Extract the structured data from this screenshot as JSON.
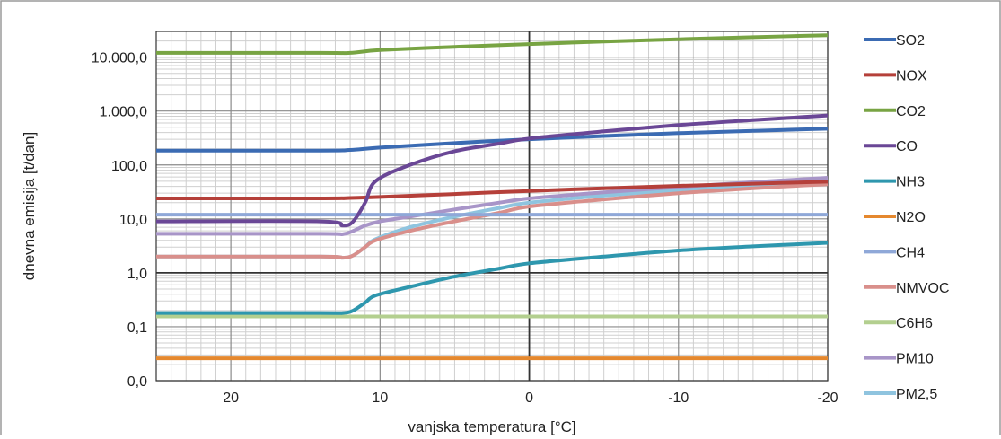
{
  "chart_data": {
    "type": "line",
    "title": "",
    "xlabel": "vanjska temperatura [°C]",
    "ylabel": "dnevna emisija [t/dan]",
    "xlim": [
      25,
      -20
    ],
    "ylim": [
      0.01,
      30000
    ],
    "yscale": "log",
    "x_ticks": [
      20,
      10,
      0,
      -10,
      -20
    ],
    "x_tick_labels": [
      "20",
      "10",
      "0",
      "-10",
      "-20"
    ],
    "y_ticks": [
      0.01,
      0.1,
      1,
      10,
      100,
      1000,
      10000
    ],
    "y_tick_labels": [
      "0,0",
      "0,1",
      "1,0",
      "10,0",
      "100,0",
      "1.000,0",
      "10.000,0"
    ],
    "grid": true,
    "legend_position": "right",
    "series": [
      {
        "name": "SO2",
        "color": "#3B6BB3",
        "points": [
          [
            25,
            185
          ],
          [
            14,
            185
          ],
          [
            12,
            190
          ],
          [
            10,
            210
          ],
          [
            5,
            255
          ],
          [
            0,
            300
          ],
          [
            -5,
            345
          ],
          [
            -10,
            390
          ],
          [
            -15,
            430
          ],
          [
            -20,
            470
          ]
        ]
      },
      {
        "name": "NOX",
        "color": "#B5403A",
        "points": [
          [
            25,
            24
          ],
          [
            14,
            24
          ],
          [
            12,
            24.5
          ],
          [
            10,
            25.5
          ],
          [
            5,
            29
          ],
          [
            0,
            33
          ],
          [
            -5,
            37
          ],
          [
            -10,
            41
          ],
          [
            -15,
            45
          ],
          [
            -20,
            49
          ]
        ]
      },
      {
        "name": "CO2",
        "color": "#78A443",
        "points": [
          [
            25,
            12000
          ],
          [
            14,
            12000
          ],
          [
            12,
            12000
          ],
          [
            10,
            13500
          ],
          [
            5,
            15500
          ],
          [
            0,
            17500
          ],
          [
            -5,
            19500
          ],
          [
            -10,
            21500
          ],
          [
            -15,
            23500
          ],
          [
            -20,
            25500
          ]
        ]
      },
      {
        "name": "CO",
        "color": "#6A4796",
        "points": [
          [
            25,
            9
          ],
          [
            14,
            9
          ],
          [
            12.5,
            7.5
          ],
          [
            11.8,
            9
          ],
          [
            11,
            20
          ],
          [
            10.3,
            50
          ],
          [
            8,
            100
          ],
          [
            5,
            180
          ],
          [
            2,
            250
          ],
          [
            0,
            310
          ],
          [
            -5,
            420
          ],
          [
            -10,
            550
          ],
          [
            -15,
            680
          ],
          [
            -20,
            830
          ]
        ]
      },
      {
        "name": "NH3",
        "color": "#2E97AE",
        "points": [
          [
            25,
            0.18
          ],
          [
            14,
            0.18
          ],
          [
            12.5,
            0.18
          ],
          [
            11.8,
            0.2
          ],
          [
            11,
            0.28
          ],
          [
            10.3,
            0.38
          ],
          [
            8,
            0.55
          ],
          [
            5,
            0.85
          ],
          [
            2,
            1.2
          ],
          [
            0,
            1.5
          ],
          [
            -5,
            2
          ],
          [
            -10,
            2.6
          ],
          [
            -15,
            3.1
          ],
          [
            -20,
            3.6
          ]
        ]
      },
      {
        "name": "N2O",
        "color": "#E5882E",
        "points": [
          [
            25,
            0.026
          ],
          [
            -20,
            0.026
          ]
        ]
      },
      {
        "name": "CH4",
        "color": "#8FA8D8",
        "points": [
          [
            25,
            12
          ],
          [
            -20,
            12
          ]
        ]
      },
      {
        "name": "NMVOC",
        "color": "#D98F8B",
        "points": [
          [
            25,
            2
          ],
          [
            14,
            2
          ],
          [
            12.5,
            1.9
          ],
          [
            11.8,
            2.1
          ],
          [
            11,
            3
          ],
          [
            10.3,
            4
          ],
          [
            8,
            6
          ],
          [
            5,
            9
          ],
          [
            2,
            13
          ],
          [
            0,
            17
          ],
          [
            -5,
            23
          ],
          [
            -10,
            30
          ],
          [
            -15,
            37
          ],
          [
            -20,
            44
          ]
        ]
      },
      {
        "name": "C6H6",
        "color": "#B3CF8F",
        "points": [
          [
            25,
            0.155
          ],
          [
            -20,
            0.155
          ]
        ]
      },
      {
        "name": "PM10",
        "color": "#A895C8",
        "points": [
          [
            25,
            5.3
          ],
          [
            14,
            5.3
          ],
          [
            12.5,
            5.2
          ],
          [
            11.8,
            6
          ],
          [
            11,
            7.5
          ],
          [
            10,
            9
          ],
          [
            8,
            11
          ],
          [
            5,
            15
          ],
          [
            2,
            20
          ],
          [
            0,
            24
          ],
          [
            -5,
            31
          ],
          [
            -10,
            39
          ],
          [
            -15,
            48
          ],
          [
            -20,
            58
          ]
        ]
      },
      {
        "name": "PM2,5",
        "color": "#8FC4DF",
        "points": [
          [
            25,
            2
          ],
          [
            14,
            2
          ],
          [
            12.5,
            1.9
          ],
          [
            11.8,
            2.1
          ],
          [
            11,
            3
          ],
          [
            10.3,
            4.2
          ],
          [
            8,
            7
          ],
          [
            5,
            11
          ],
          [
            2,
            16
          ],
          [
            0,
            20
          ],
          [
            -5,
            27
          ],
          [
            -10,
            34
          ],
          [
            -15,
            42
          ],
          [
            -20,
            50
          ]
        ]
      }
    ]
  }
}
